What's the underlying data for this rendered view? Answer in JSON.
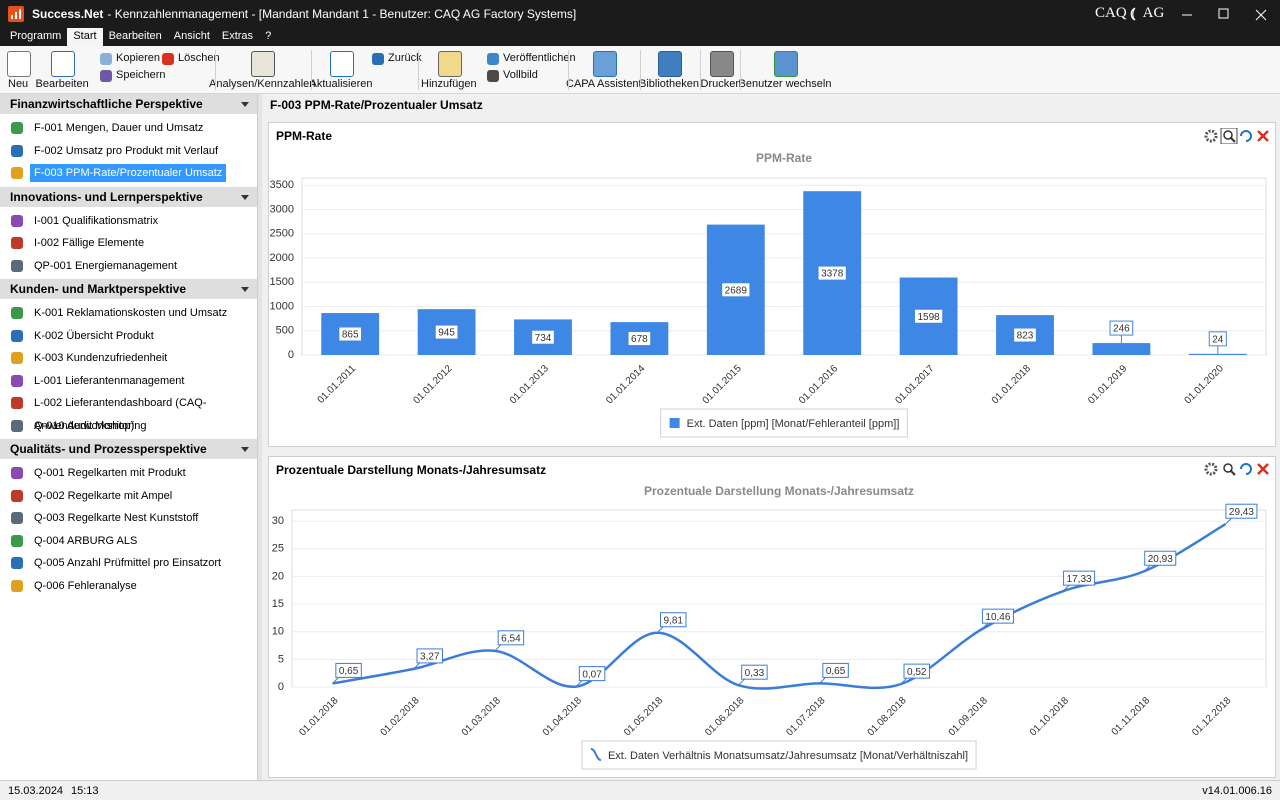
{
  "window": {
    "app": "Success.Net",
    "title": "- Kennzahlenmanagement - [Mandant Mandant 1 - Benutzer: CAQ AG Factory Systems]",
    "logo": [
      "CAQ",
      "AG"
    ]
  },
  "menu": [
    "Programm",
    "Start",
    "Bearbeiten",
    "Ansicht",
    "Extras",
    "?"
  ],
  "toolbar": [
    "Neu",
    "Bearbeiten",
    "Kopieren",
    "Speichern",
    "Löschen",
    "Analysen/Kennzahlen",
    "Aktualisieren",
    "Zurück",
    "Hinzufügen",
    "Veröffentlichen",
    "Vollbild",
    "CAPA Assistent",
    "Bibliotheken",
    "Drucken",
    "Benutzer wechseln"
  ],
  "sidebar": [
    {
      "title": "Finanzwirtschaftliche Perspektive",
      "items": [
        "F-001 Mengen, Dauer und Umsatz",
        "F-002 Umsatz pro Produkt mit Verlauf",
        "F-003 PPM-Rate/Prozentualer Umsatz"
      ]
    },
    {
      "title": "Innovations- und Lernperspektive",
      "items": [
        "I-001 Qualifikationsmatrix",
        "I-002 Fällige Elemente",
        "QP-001 Energiemanagement"
      ]
    },
    {
      "title": "Kunden- und Marktperspektive",
      "items": [
        "K-001 Reklamationskosten und Umsatz",
        "K-002 Übersicht Produkt",
        "K-003 Kundenzufriedenheit",
        "L-001 Lieferantenmanagement",
        "L-002 Lieferantendashboard (CAQ-Anwenderworkshop)",
        "Q-010 Audit Monitoring"
      ]
    },
    {
      "title": "Qualitäts- und Prozessperspektive",
      "items": [
        "Q-001 Regelkarten mit Produkt",
        "Q-002 Regelkarte mit Ampel",
        "Q-003 Regelkarte Nest Kunststoff",
        "Q-004 ARBURG ALS",
        "Q-005 Anzahl Prüfmittel pro Einsatzort",
        "Q-006 Fehleranalyse"
      ]
    }
  ],
  "content": {
    "title": "F-003 PPM-Rate/Prozentualer Umsatz",
    "panels": [
      "PPM-Rate",
      "Prozentuale Darstellung Monats-/Jahresumsatz"
    ]
  },
  "chart_data": [
    {
      "type": "bar",
      "title": "PPM-Rate",
      "categories": [
        "01.01.2011",
        "01.01.2012",
        "01.01.2013",
        "01.01.2014",
        "01.01.2015",
        "01.01.2016",
        "01.01.2017",
        "01.01.2018",
        "01.01.2019",
        "01.01.2020"
      ],
      "series": [
        {
          "name": "Ext. Daten [ppm] [Monat/Fehleranteil [ppm]]",
          "color": "#3f87e5",
          "values": [
            865,
            945,
            734,
            678,
            2689,
            3378,
            1598,
            823,
            246,
            24
          ]
        }
      ],
      "ylim": [
        0,
        3650
      ],
      "yticks": [
        0,
        500,
        1000,
        1500,
        2000,
        2500,
        3000,
        3500
      ],
      "grid": true
    },
    {
      "type": "line",
      "title": "Prozentuale Darstellung Monats-/Jahresumsatz",
      "categories": [
        "01.01.2018",
        "01.02.2018",
        "01.03.2018",
        "01.04.2018",
        "01.05.2018",
        "01.06.2018",
        "01.07.2018",
        "01.08.2018",
        "01.09.2018",
        "01.10.2018",
        "01.11.2018",
        "01.12.2018"
      ],
      "series": [
        {
          "name": "Ext. Daten Verhältnis Monatsumsatz/Jahresumsatz [Monat/Verhältniszahl]",
          "color": "#3a7dd8",
          "values": [
            0.65,
            3.27,
            6.54,
            0.07,
            9.81,
            0.33,
            0.65,
            0.52,
            10.46,
            17.33,
            20.93,
            29.43
          ],
          "value_labels": [
            "0,65",
            "3,27",
            "6,54",
            "0,07",
            "9,81",
            "0,33",
            "0,65",
            "0,52",
            "10,46",
            "17,33",
            "20,93",
            "29,43"
          ]
        }
      ],
      "ylim": [
        0,
        32
      ],
      "yticks": [
        0,
        5,
        10,
        15,
        20,
        25,
        30
      ],
      "grid": true,
      "smooth": true
    }
  ],
  "status": {
    "date": "15.03.2024",
    "time": "15:13",
    "version": "v14.01.006.16"
  }
}
